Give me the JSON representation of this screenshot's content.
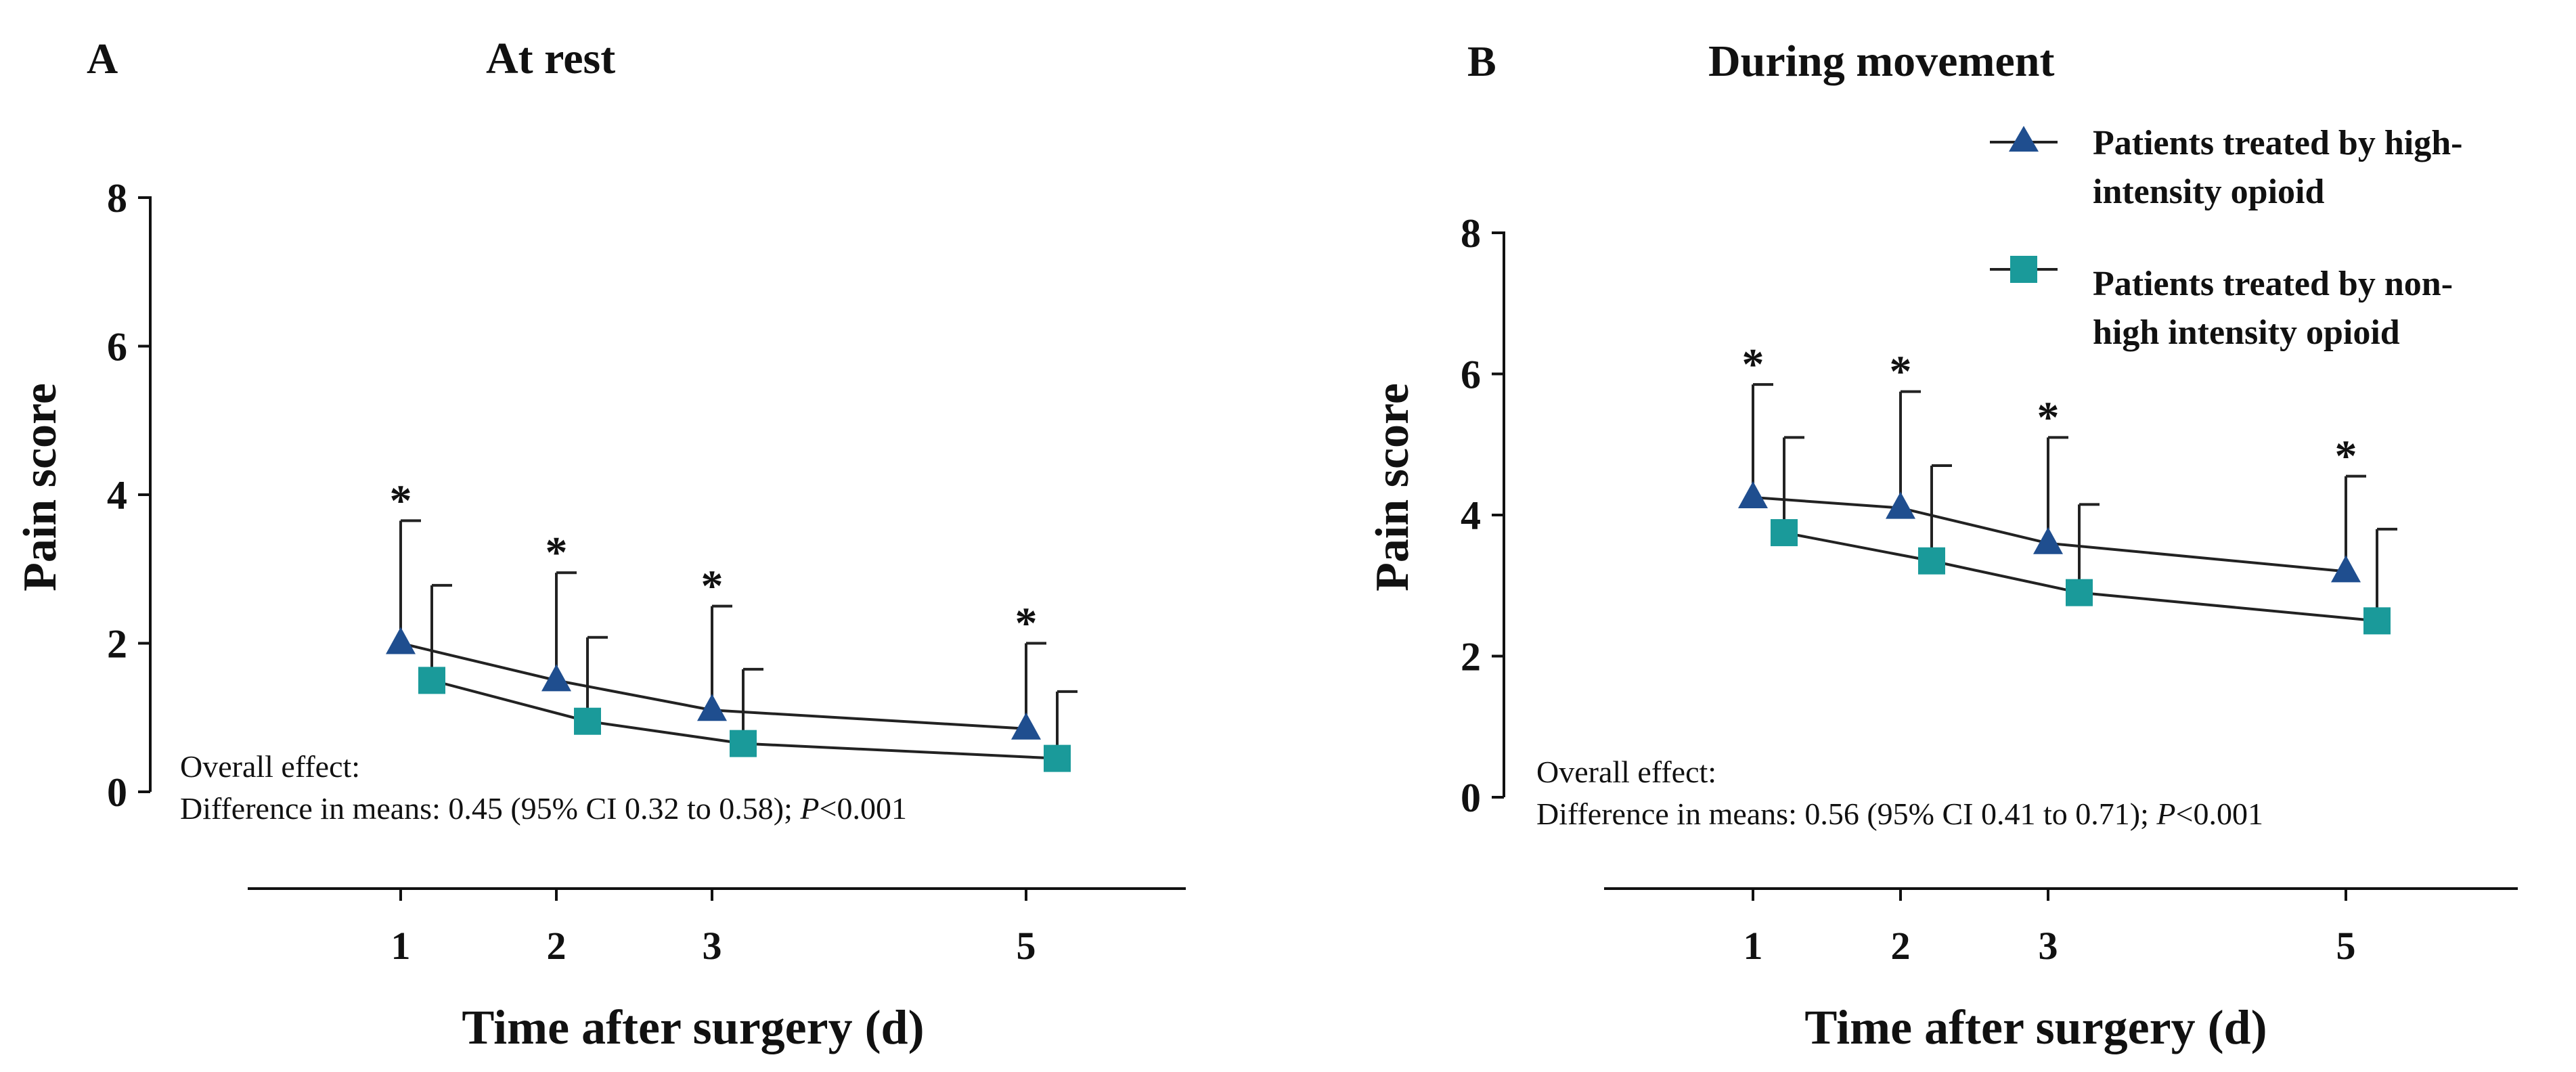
{
  "colors": {
    "high": "#1f4e8f",
    "non_high": "#1a9a9a",
    "line": "#222222"
  },
  "legend": [
    {
      "series": "high",
      "line1": "Patients treated by high-",
      "line2": "intensity opioid"
    },
    {
      "series": "non_high",
      "line1": "Patients treated by non-",
      "line2": "high intensity opioid"
    }
  ],
  "chart_data": [
    {
      "panel": "A",
      "type": "line",
      "title": "At rest",
      "xlabel": "Time after surgery (d)",
      "ylabel": "Pain score",
      "ylim": [
        0,
        8
      ],
      "yticks": [
        "0",
        "2",
        "4",
        "6",
        "8"
      ],
      "categories": [
        "1",
        "2",
        "3",
        "5"
      ],
      "x": [
        1,
        2,
        3,
        5
      ],
      "series": [
        {
          "name": "Patients treated by high-intensity opioid",
          "key": "high",
          "marker": "triangle",
          "values": [
            2.0,
            1.5,
            1.1,
            0.85
          ],
          "error_upper": [
            3.65,
            2.95,
            2.5,
            2.0
          ]
        },
        {
          "name": "Patients treated by non-high intensity opioid",
          "key": "non_high",
          "marker": "square",
          "values": [
            1.5,
            0.95,
            0.65,
            0.45
          ],
          "error_upper": [
            2.78,
            2.08,
            1.65,
            1.35
          ]
        }
      ],
      "significance": [
        "*",
        "*",
        "*",
        "*"
      ],
      "annotation_line1": "Overall effect:",
      "annotation_line2": "Difference in means: 0.45 (95% CI 0.32 to 0.58); ",
      "annotation_p_italic": "P",
      "annotation_p_rest": "<0.001"
    },
    {
      "panel": "B",
      "type": "line",
      "title": "During movement",
      "xlabel": "Time after surgery (d)",
      "ylabel": "Pain score",
      "ylim": [
        0,
        8
      ],
      "yticks": [
        "0",
        "2",
        "4",
        "6",
        "8"
      ],
      "categories": [
        "1",
        "2",
        "3",
        "5"
      ],
      "x": [
        1,
        2,
        3,
        5
      ],
      "series": [
        {
          "name": "Patients treated by high-intensity opioid",
          "key": "high",
          "marker": "triangle",
          "values": [
            4.25,
            4.1,
            3.6,
            3.2
          ],
          "error_upper": [
            5.85,
            5.75,
            5.1,
            4.55
          ]
        },
        {
          "name": "Patients treated by non-high intensity opioid",
          "key": "non_high",
          "marker": "square",
          "values": [
            3.75,
            3.35,
            2.9,
            2.5
          ],
          "error_upper": [
            5.1,
            4.7,
            4.15,
            3.8
          ]
        }
      ],
      "significance": [
        "*",
        "*",
        "*",
        "*"
      ],
      "annotation_line1": "Overall effect:",
      "annotation_line2": "Difference in means: 0.56 (95% CI 0.41 to 0.71); ",
      "annotation_p_italic": "P",
      "annotation_p_rest": "<0.001"
    }
  ]
}
